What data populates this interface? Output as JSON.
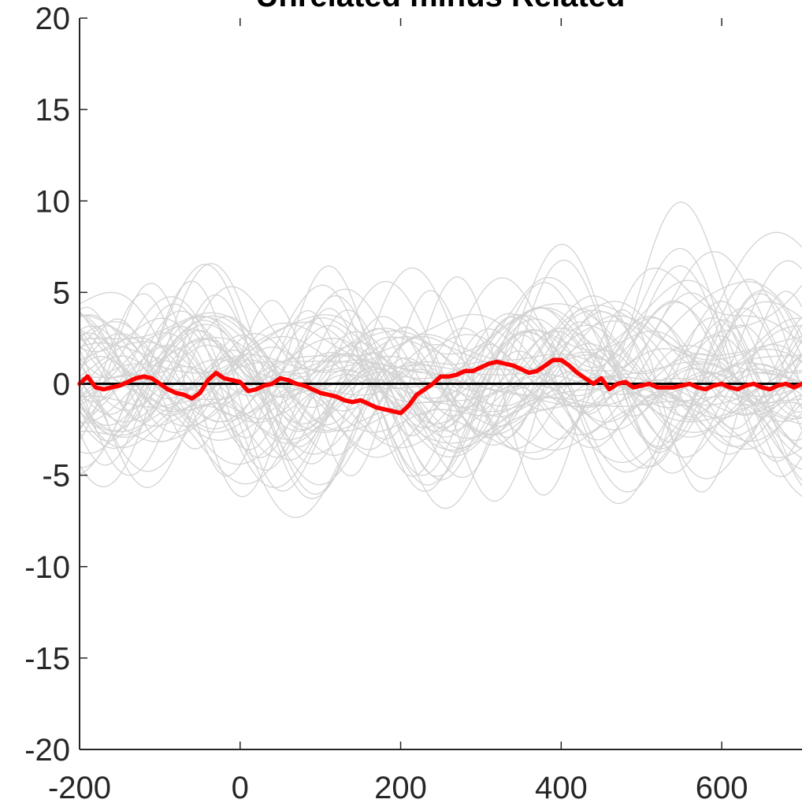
{
  "chart_data": {
    "type": "line",
    "title": "Unrelated minus Related",
    "xlabel": "",
    "ylabel": "",
    "xlim": [
      -200,
      700
    ],
    "ylim": [
      -20,
      20
    ],
    "x_ticks": [
      -200,
      0,
      200,
      400,
      600
    ],
    "y_ticks": [
      -20,
      -15,
      -10,
      -5,
      0,
      5,
      10,
      15,
      20
    ],
    "grid": false,
    "zero_line_color": "#000000",
    "individual_color": "#d3d3d3",
    "mean_color": "#ff0000",
    "mean_series": {
      "x": [
        -200,
        -190,
        -180,
        -170,
        -160,
        -150,
        -140,
        -130,
        -120,
        -110,
        -100,
        -90,
        -80,
        -70,
        -60,
        -50,
        -40,
        -30,
        -20,
        -10,
        0,
        10,
        20,
        30,
        40,
        50,
        60,
        70,
        80,
        90,
        100,
        110,
        120,
        130,
        140,
        150,
        160,
        170,
        180,
        190,
        200,
        210,
        220,
        230,
        240,
        250,
        260,
        270,
        280,
        290,
        300,
        310,
        320,
        330,
        340,
        350,
        360,
        370,
        380,
        390,
        400,
        410,
        420,
        430,
        440,
        450,
        460,
        470,
        480,
        490,
        500,
        510,
        520,
        530,
        540,
        550,
        560,
        570,
        580,
        590,
        600,
        610,
        620,
        630,
        640,
        650,
        660,
        670,
        680,
        690,
        700
      ],
      "y": [
        0.0,
        0.4,
        -0.2,
        -0.3,
        -0.2,
        -0.1,
        0.1,
        0.3,
        0.4,
        0.3,
        0.0,
        -0.3,
        -0.5,
        -0.6,
        -0.8,
        -0.5,
        0.2,
        0.6,
        0.3,
        0.2,
        0.1,
        -0.4,
        -0.3,
        -0.1,
        0.0,
        0.3,
        0.2,
        0.0,
        -0.1,
        -0.3,
        -0.5,
        -0.6,
        -0.7,
        -0.9,
        -1.0,
        -0.9,
        -1.1,
        -1.3,
        -1.4,
        -1.5,
        -1.6,
        -1.2,
        -0.6,
        -0.3,
        0.0,
        0.4,
        0.4,
        0.5,
        0.7,
        0.7,
        0.9,
        1.1,
        1.2,
        1.1,
        1.0,
        0.8,
        0.6,
        0.7,
        1.0,
        1.3,
        1.3,
        1.0,
        0.6,
        0.3,
        0.0,
        0.3,
        -0.3,
        0.0,
        0.1,
        -0.2,
        -0.1,
        0.0,
        -0.2,
        -0.2,
        -0.2,
        -0.1,
        0.0,
        -0.2,
        -0.3,
        -0.1,
        0.0,
        -0.2,
        -0.3,
        -0.1,
        0.0,
        -0.2,
        -0.3,
        -0.1,
        0.0,
        -0.2,
        0.0
      ]
    },
    "individual_series_count": 60
  }
}
